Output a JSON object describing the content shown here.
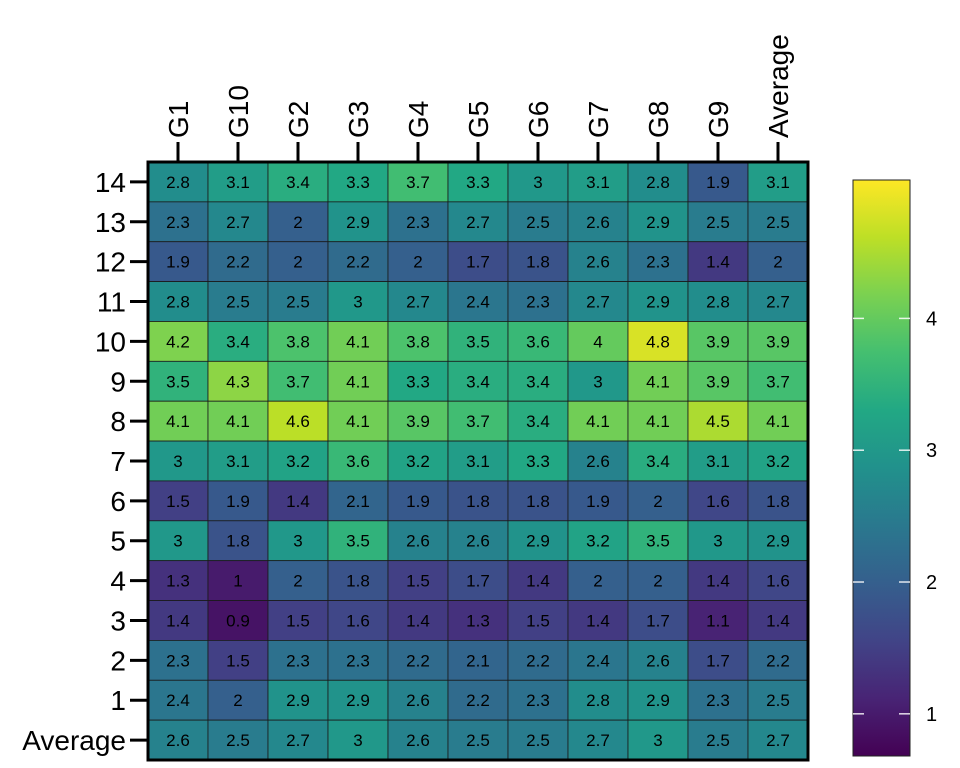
{
  "chart_data": {
    "type": "heatmap",
    "title": "",
    "xlabel": "",
    "ylabel": "",
    "x_labels": [
      "G1",
      "G10",
      "G2",
      "G3",
      "G4",
      "G5",
      "G6",
      "G7",
      "G8",
      "G9",
      "Average"
    ],
    "y_labels": [
      "14",
      "13",
      "12",
      "11",
      "10",
      "9",
      "8",
      "7",
      "6",
      "5",
      "4",
      "3",
      "2",
      "1",
      "Average"
    ],
    "values": [
      [
        2.8,
        3.1,
        3.4,
        3.3,
        3.7,
        3.3,
        3,
        3.1,
        2.8,
        1.9,
        3.1
      ],
      [
        2.3,
        2.7,
        2,
        2.9,
        2.3,
        2.7,
        2.5,
        2.6,
        2.9,
        2.5,
        2.5
      ],
      [
        1.9,
        2.2,
        2,
        2.2,
        2,
        1.7,
        1.8,
        2.6,
        2.3,
        1.4,
        2
      ],
      [
        2.8,
        2.5,
        2.5,
        3,
        2.7,
        2.4,
        2.3,
        2.7,
        2.9,
        2.8,
        2.7
      ],
      [
        4.2,
        3.4,
        3.8,
        4.1,
        3.8,
        3.5,
        3.6,
        4,
        4.8,
        3.9,
        3.9
      ],
      [
        3.5,
        4.3,
        3.7,
        4.1,
        3.3,
        3.4,
        3.4,
        3,
        4.1,
        3.9,
        3.7
      ],
      [
        4.1,
        4.1,
        4.6,
        4.1,
        3.9,
        3.7,
        3.4,
        4.1,
        4.1,
        4.5,
        4.1
      ],
      [
        3,
        3.1,
        3.2,
        3.6,
        3.2,
        3.1,
        3.3,
        2.6,
        3.4,
        3.1,
        3.2
      ],
      [
        1.5,
        1.9,
        1.4,
        2.1,
        1.9,
        1.8,
        1.8,
        1.9,
        2,
        1.6,
        1.8
      ],
      [
        3,
        1.8,
        3,
        3.5,
        2.6,
        2.6,
        2.9,
        3.2,
        3.5,
        3,
        2.9
      ],
      [
        1.3,
        1,
        2,
        1.8,
        1.5,
        1.7,
        1.4,
        2,
        2,
        1.4,
        1.6
      ],
      [
        1.4,
        0.9,
        1.5,
        1.6,
        1.4,
        1.3,
        1.5,
        1.4,
        1.7,
        1.1,
        1.4
      ],
      [
        2.3,
        1.5,
        2.3,
        2.3,
        2.2,
        2.1,
        2.2,
        2.4,
        2.6,
        1.7,
        2.2
      ],
      [
        2.4,
        2,
        2.9,
        2.9,
        2.6,
        2.2,
        2.3,
        2.8,
        2.9,
        2.3,
        2.5
      ],
      [
        2.6,
        2.5,
        2.7,
        3,
        2.6,
        2.5,
        2.5,
        2.7,
        3,
        2.5,
        2.7
      ]
    ],
    "colormap": "viridis",
    "color_range": [
      0.68,
      5.05
    ],
    "colorbar": {
      "ticks": [
        1,
        2,
        3,
        4
      ],
      "tick_labels": [
        "1",
        "2",
        "3",
        "4"
      ],
      "placement": "right"
    },
    "x_axis_position": "top",
    "x_tick_rotation": -90,
    "grid": false
  }
}
